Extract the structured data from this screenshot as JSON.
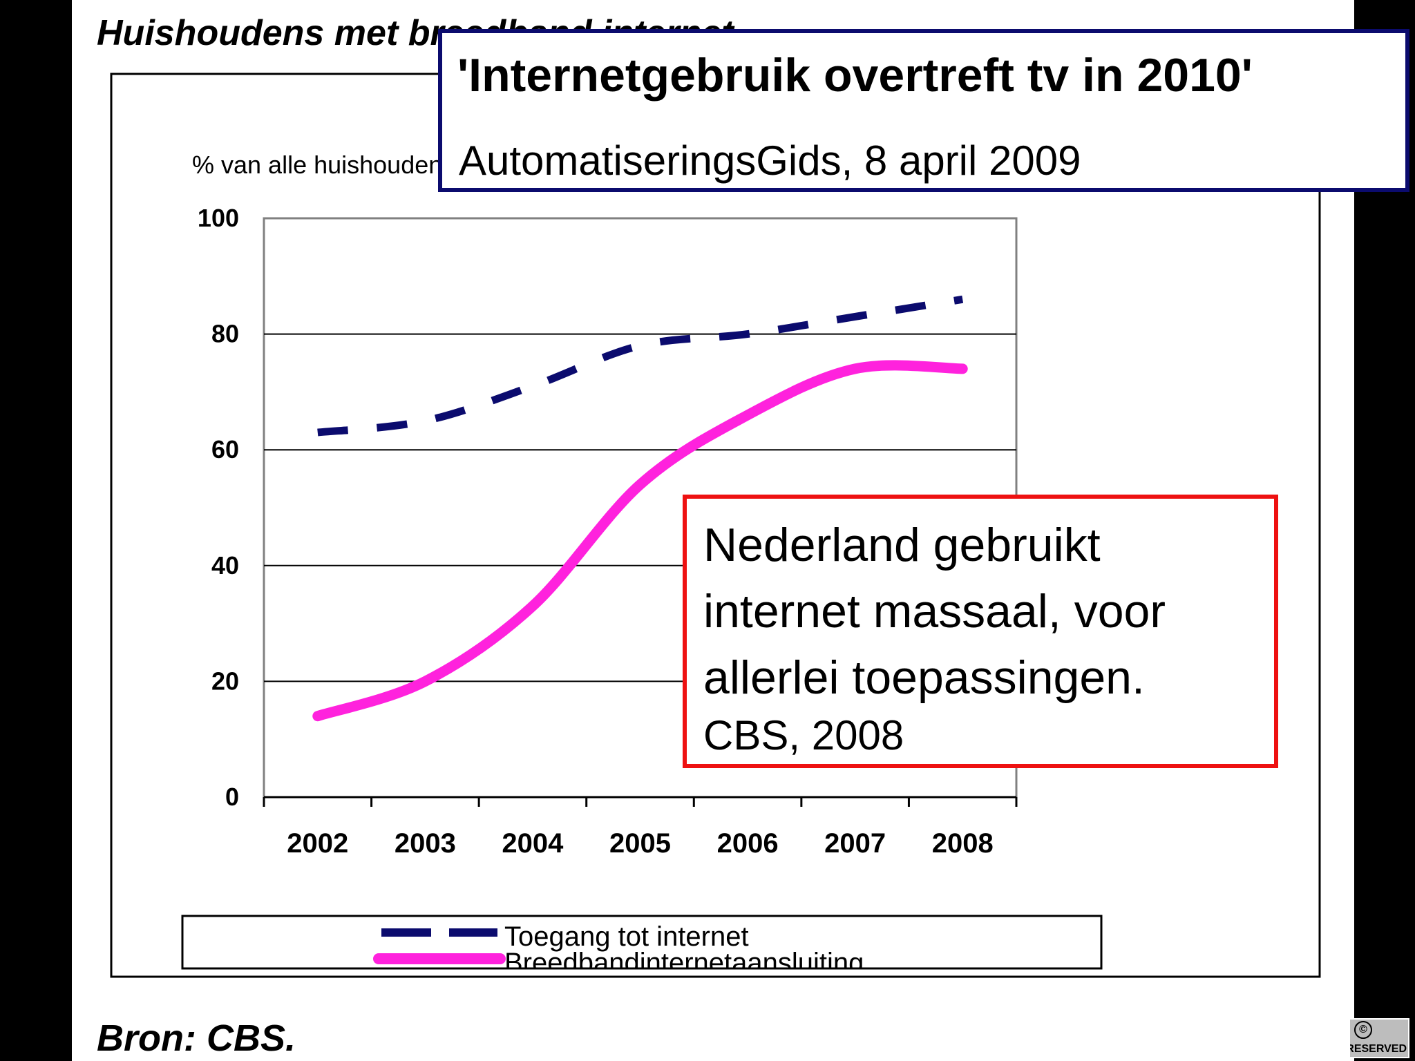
{
  "slide": {
    "header_title": "Huishoudens met breedband internet",
    "source": "Bron: CBS."
  },
  "headline": {
    "title": "'Internetgebruik overtreft tv in 2010'",
    "subtitle": "AutomatiseringsGids, 8 april 2009"
  },
  "callout": {
    "lines": [
      "Nederland gebruikt",
      "internet massaal, voor",
      "allerlei toepassingen."
    ],
    "source": "CBS, 2008"
  },
  "badge": {
    "icon": "creative-commons-icon",
    "text": "RIGHTS RESERVED"
  },
  "colors": {
    "background": "#000000",
    "slide": "#ffffff",
    "series_access": "#0b0b6e",
    "series_broadband": "#ff22dd",
    "headline_border": "#0b0b6e",
    "callout_border": "#ee1111"
  },
  "chart_data": {
    "type": "line",
    "ylabel": "% van alle huishoudens",
    "xlabel": "",
    "x": [
      "2002",
      "2003",
      "2004",
      "2005",
      "2006",
      "2007",
      "2008"
    ],
    "yticks": [
      "0",
      "20",
      "40",
      "60",
      "80",
      "100"
    ],
    "ylim": [
      0,
      100
    ],
    "grid": true,
    "legend_position": "bottom",
    "series": [
      {
        "name": "Toegang tot internet",
        "style": "dashed",
        "color": "#0b0b6e",
        "values": [
          63,
          65,
          71,
          78,
          80,
          83,
          86
        ]
      },
      {
        "name": "Breedbandinternetaansluiting",
        "style": "solid",
        "color": "#ff22dd",
        "values": [
          14,
          20,
          33,
          54,
          66,
          74,
          74
        ]
      }
    ]
  }
}
